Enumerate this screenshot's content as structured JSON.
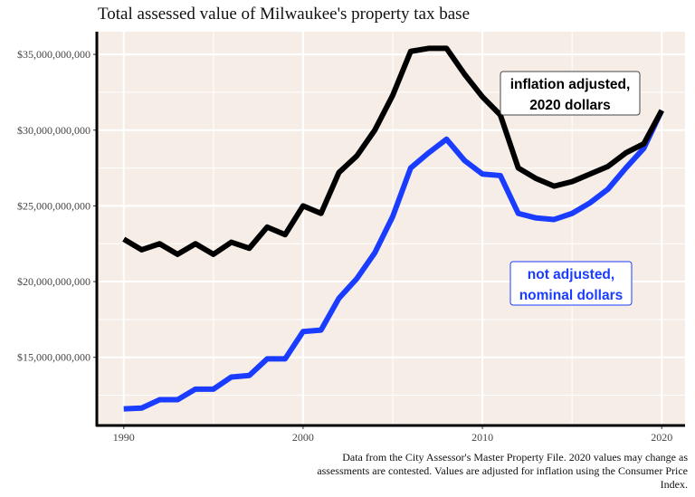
{
  "chart_data": {
    "type": "line",
    "title": "Total assessed value of Milwaukee's property tax base",
    "caption": "Data from the City Assessor's Master Property File. 2020 values may change as assessments are contested. Values are adjusted for inflation using the Consumer Price Index.",
    "xlabel": "",
    "ylabel": "",
    "xlim": [
      1988.5,
      2021.3
    ],
    "ylim": [
      10500000000,
      36500000000
    ],
    "x_ticks": [
      1990,
      2000,
      2010,
      2020
    ],
    "y_ticks": [
      15000000000,
      20000000000,
      25000000000,
      30000000000,
      35000000000
    ],
    "y_tick_labels": [
      "$15,000,000,000",
      "$20,000,000,000",
      "$25,000,000,000",
      "$30,000,000,000",
      "$35,000,000,000"
    ],
    "grid": true,
    "background": "#f6eee6",
    "x": [
      1990,
      1991,
      1992,
      1993,
      1994,
      1995,
      1996,
      1997,
      1998,
      1999,
      2000,
      2001,
      2002,
      2003,
      2004,
      2005,
      2006,
      2007,
      2008,
      2009,
      2010,
      2011,
      2012,
      2013,
      2014,
      2015,
      2016,
      2017,
      2018,
      2019,
      2020
    ],
    "series": [
      {
        "name": "inflation adjusted, 2020 dollars",
        "color": "#000000",
        "values": [
          22.8,
          22.1,
          22.5,
          21.8,
          22.5,
          21.8,
          22.6,
          22.2,
          23.6,
          23.1,
          25.0,
          24.5,
          27.2,
          28.3,
          30.0,
          32.3,
          35.2,
          35.4,
          35.4,
          33.7,
          32.2,
          31.0,
          27.5,
          26.8,
          26.3,
          26.6,
          27.1,
          27.6,
          28.5,
          29.1,
          31.3
        ],
        "unit": "billion USD"
      },
      {
        "name": "not adjusted, nominal dollars",
        "color": "#1a3cff",
        "values": [
          11.6,
          11.65,
          12.2,
          12.2,
          12.9,
          12.9,
          13.7,
          13.8,
          14.9,
          14.9,
          16.7,
          16.8,
          18.9,
          20.2,
          21.9,
          24.3,
          27.5,
          28.5,
          29.4,
          28.0,
          27.1,
          27.0,
          24.5,
          24.2,
          24.1,
          24.5,
          25.2,
          26.1,
          27.5,
          28.8,
          31.3
        ],
        "unit": "billion USD"
      }
    ]
  }
}
